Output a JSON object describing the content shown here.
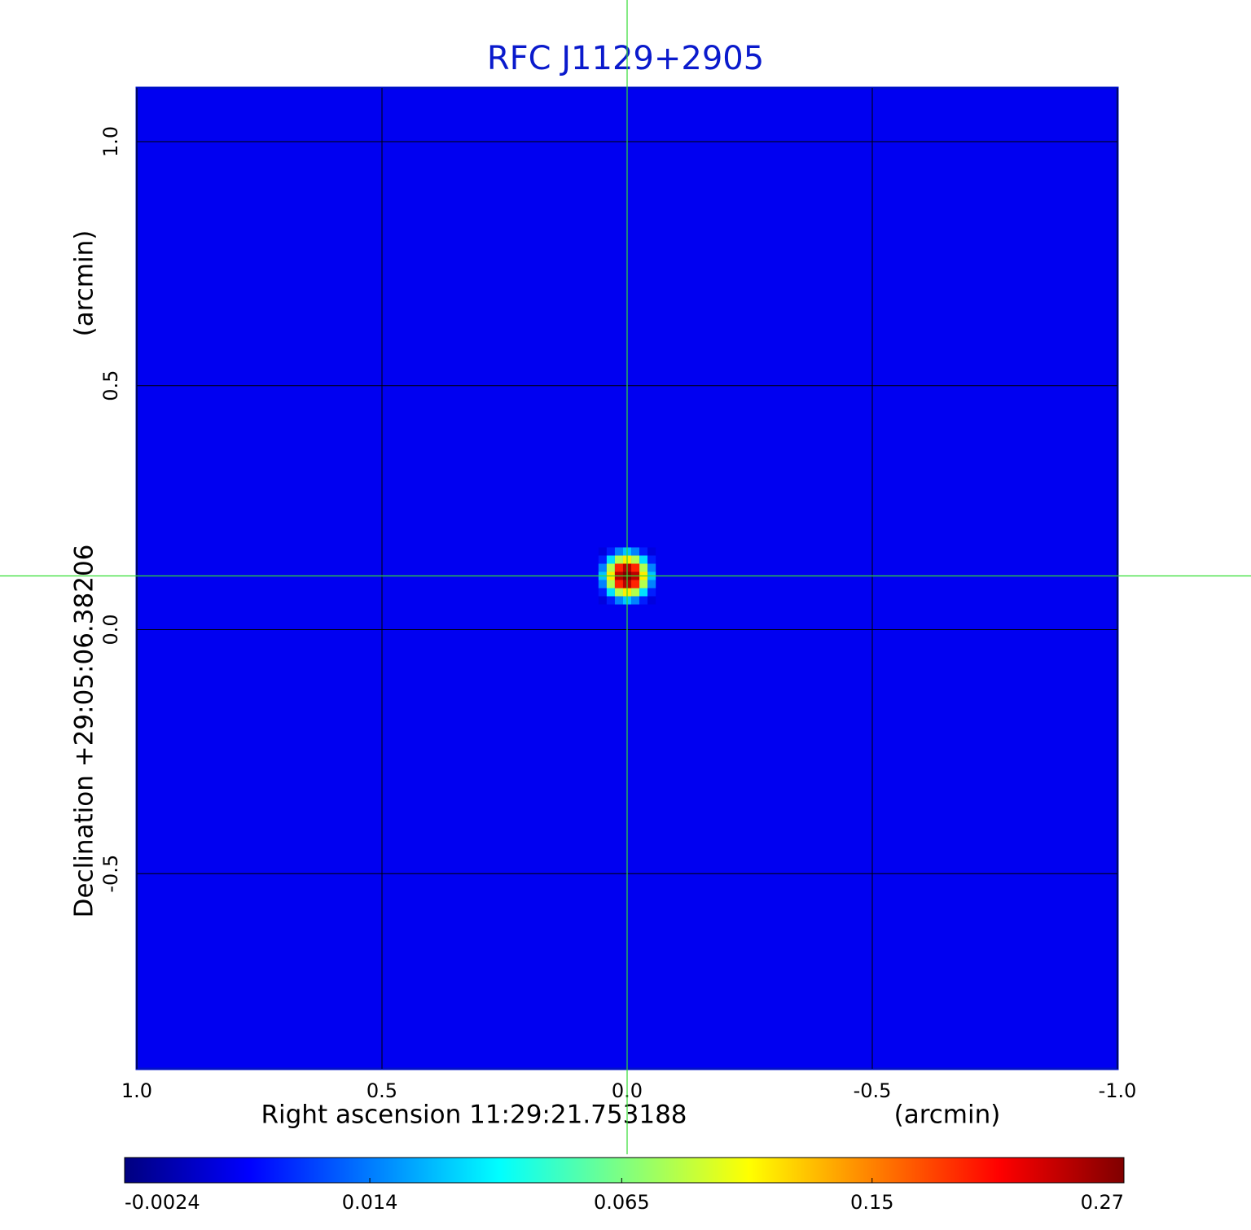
{
  "chart_data": {
    "type": "image",
    "title": "RFC J1129+2905",
    "x_label": "Right ascension  11:29:21.753188",
    "x_unit": "(arcmin)",
    "y_label": "Declination  +29:05:06.38206",
    "y_unit": "(arcmin)",
    "xlim": [
      1.0,
      -1.0
    ],
    "ylim": [
      -0.9,
      1.11
    ],
    "xticks": [
      {
        "value": 1.0,
        "label": "1.0"
      },
      0.5,
      {
        "value": 0.0,
        "label": "0.0"
      },
      -0.5,
      {
        "value": -1.0,
        "label": "-1.0"
      }
    ],
    "yticks": [
      {
        "value": 1.0,
        "label": "1.0"
      },
      0.5,
      {
        "value": 0.0,
        "label": "0.0"
      },
      -0.5
    ],
    "grid": true,
    "colormap": "jet",
    "cscale": "sqrt",
    "clim": [
      -0.0024,
      0.27
    ],
    "cticks": [
      -0.0024,
      0.014,
      0.065,
      0.15,
      0.27
    ],
    "background": 0.001,
    "source_x": 0.0,
    "source_y": 0.11,
    "pixel_size": 0.0167,
    "pixels": [
      [
        0.0,
        0.004,
        0.015,
        0.025,
        0.015,
        0.004,
        0.0
      ],
      [
        0.004,
        0.03,
        0.08,
        0.11,
        0.08,
        0.03,
        0.004
      ],
      [
        0.015,
        0.08,
        0.19,
        0.24,
        0.19,
        0.08,
        0.015
      ],
      [
        0.025,
        0.11,
        0.24,
        0.27,
        0.24,
        0.11,
        0.025
      ],
      [
        0.015,
        0.08,
        0.19,
        0.24,
        0.19,
        0.08,
        0.015
      ],
      [
        0.004,
        0.03,
        0.08,
        0.11,
        0.08,
        0.03,
        0.004
      ],
      [
        0.0,
        0.004,
        0.015,
        0.025,
        0.015,
        0.004,
        0.0
      ]
    ],
    "crosshair_color": "#33dd33",
    "title_color": "#0a1acc"
  }
}
